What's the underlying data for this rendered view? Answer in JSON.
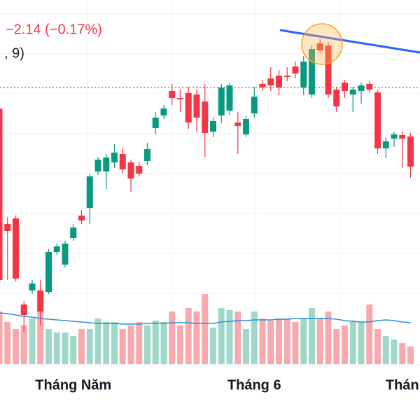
{
  "chart_data": {
    "type": "candlestick",
    "change_label": "−2.14 (−0.17%)",
    "indicator_label": ", 9)",
    "categories": [
      null,
      null,
      null,
      null,
      null,
      null,
      null,
      null,
      null,
      "Tháng Năm",
      null,
      null,
      null,
      null,
      null,
      null,
      null,
      null,
      null,
      null,
      null,
      null,
      null,
      null,
      null,
      null,
      null,
      null,
      null,
      null,
      null,
      "Tháng 6",
      null,
      null,
      null,
      null,
      null,
      null,
      null,
      null,
      null,
      null,
      null,
      null,
      null,
      null,
      null,
      null,
      null,
      "Thán",
      null
    ],
    "open": [
      1242.5,
      1160,
      1164,
      1102.5,
      1112.5,
      1112.5,
      1111.5,
      1140,
      1131,
      1150,
      1166,
      1171.5,
      1197.5,
      1197.5,
      1204,
      1210,
      1204,
      1201.5,
      1205,
      1228.5,
      1237.5,
      1255,
      1250,
      1253.5,
      1252.5,
      1247.5,
      1226,
      1237.5,
      1241,
      1232.5,
      1224,
      1239,
      1260,
      1264,
      1266,
      1266,
      1272.5,
      1257.5,
      1252.5,
      1289,
      1287.5,
      1256,
      1261,
      1252.5,
      1255,
      1260,
      1254,
      1214,
      1221,
      1223.5,
      1222.5
    ],
    "high": [
      1245,
      1165,
      1166,
      1105,
      1120,
      1120,
      1142,
      1146,
      1148,
      1160,
      1170,
      1196,
      1208,
      1210,
      1217,
      1214,
      1206,
      1204,
      1218,
      1240,
      1245,
      1260,
      1256,
      1258,
      1256,
      1260,
      1236,
      1260,
      1261,
      1240,
      1237,
      1258,
      1263,
      1272,
      1270,
      1272,
      1276,
      1280,
      1288,
      1292,
      1290,
      1258,
      1263,
      1258,
      1261,
      1262,
      1256,
      1222,
      1226,
      1226,
      1225
    ],
    "low": [
      1115,
      1120,
      1119,
      1082.5,
      1110,
      1087.5,
      1110,
      1138,
      1129,
      1148,
      1160,
      1160,
      1195,
      1185,
      1200,
      1196,
      1183,
      1194,
      1202,
      1224,
      1235,
      1245,
      1240,
      1228,
      1226,
      1208,
      1222,
      1232,
      1238,
      1210,
      1222,
      1236,
      1255,
      1255,
      1252,
      1262,
      1264,
      1252,
      1250,
      1282,
      1250,
      1240,
      1250,
      1240,
      1246,
      1254,
      1210,
      1207,
      1215,
      1200,
      1193
    ],
    "close": [
      1120,
      1155,
      1121,
      1095,
      1117.5,
      1097.5,
      1140,
      1144,
      1146,
      1157.5,
      1162.5,
      1194,
      1206,
      1207.5,
      1211,
      1199,
      1192.5,
      1196,
      1213.5,
      1236,
      1242.5,
      1250,
      1249,
      1232.5,
      1236,
      1225,
      1233.5,
      1257.5,
      1259,
      1230,
      1235,
      1251,
      1257.5,
      1259,
      1257.5,
      1265,
      1267.5,
      1276,
      1285,
      1284,
      1252.5,
      1244,
      1255,
      1256,
      1259,
      1256,
      1214,
      1219,
      1224,
      1221,
      1201
    ],
    "volume": [
      75,
      60,
      50,
      55,
      65,
      80,
      50,
      45,
      45,
      40,
      50,
      50,
      65,
      60,
      60,
      50,
      55,
      60,
      55,
      62,
      60,
      75,
      55,
      80,
      75,
      100,
      52,
      80,
      77,
      75,
      50,
      75,
      65,
      62,
      65,
      65,
      60,
      65,
      80,
      65,
      75,
      50,
      55,
      62,
      60,
      85,
      50,
      40,
      35,
      30,
      25
    ],
    "volume_ma": [
      73,
      72,
      70,
      68,
      67,
      65,
      64,
      63,
      62,
      61,
      60,
      59,
      58,
      58,
      58,
      57,
      57,
      57,
      58,
      58,
      58,
      59,
      59,
      59,
      58,
      58,
      58,
      60,
      61,
      62,
      62,
      63,
      63,
      63,
      64,
      64,
      65,
      65,
      65,
      65,
      65,
      64,
      62,
      61,
      60,
      60,
      62,
      63,
      62,
      60,
      59
    ],
    "ylim": [
      1060,
      1320
    ],
    "volume_lim": [
      0,
      520
    ],
    "price_line": 1257.5,
    "up_color": "#089981",
    "down_color": "#f23645",
    "volume_up_color": "#9fd8cb",
    "volume_down_color": "#f7a9ae",
    "volume_ma_color": "#2f8fd8"
  }
}
